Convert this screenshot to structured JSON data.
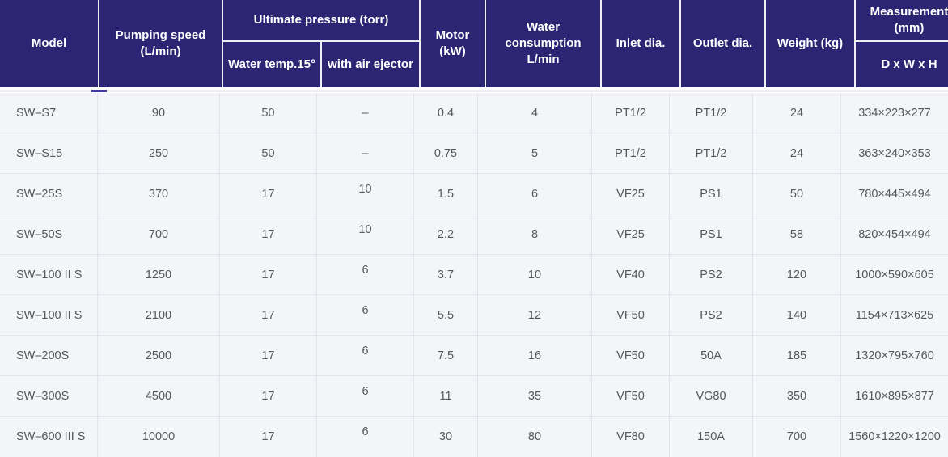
{
  "table": {
    "headers": {
      "model": "Model",
      "pumping_speed": "Pumping speed (L/min)",
      "ultimate_pressure": "Ultimate pressure (torr)",
      "water_temp": "Water temp.15°",
      "air_ejector": "with air ejector",
      "motor": "Motor (kW)",
      "water_consumption": "Water consumption L/min",
      "inlet": "Inlet dia.",
      "outlet": "Outlet dia.",
      "weight": "Weight (kg)",
      "measurement": "Measurement (mm)",
      "dimensions": "D x W x H"
    },
    "rows": [
      {
        "model": "SW–S7",
        "pumping_speed": "90",
        "water_temp": "50",
        "air_ejector": "–",
        "motor": "0.4",
        "water_consumption": "4",
        "inlet": "PT1/2",
        "outlet": "PT1/2",
        "weight": "24",
        "measurement": "334×223×277"
      },
      {
        "model": "SW–S15",
        "pumping_speed": "250",
        "water_temp": "50",
        "air_ejector": "–",
        "motor": "0.75",
        "water_consumption": "5",
        "inlet": "PT1/2",
        "outlet": "PT1/2",
        "weight": "24",
        "measurement": "363×240×353"
      },
      {
        "model": "SW–25S",
        "pumping_speed": "370",
        "water_temp": "17",
        "air_ejector": "10",
        "motor": "1.5",
        "water_consumption": "6",
        "inlet": "VF25",
        "outlet": "PS1",
        "weight": "50",
        "measurement": "780×445×494"
      },
      {
        "model": "SW–50S",
        "pumping_speed": "700",
        "water_temp": "17",
        "air_ejector": "10",
        "motor": "2.2",
        "water_consumption": "8",
        "inlet": "VF25",
        "outlet": "PS1",
        "weight": "58",
        "measurement": "820×454×494"
      },
      {
        "model": "SW–100 II S",
        "pumping_speed": "1250",
        "water_temp": "17",
        "air_ejector": "6",
        "motor": "3.7",
        "water_consumption": "10",
        "inlet": "VF40",
        "outlet": "PS2",
        "weight": "120",
        "measurement": "1000×590×605"
      },
      {
        "model": "SW–100 II S",
        "pumping_speed": "2100",
        "water_temp": "17",
        "air_ejector": "6",
        "motor": "5.5",
        "water_consumption": "12",
        "inlet": "VF50",
        "outlet": "PS2",
        "weight": "140",
        "measurement": "1154×713×625"
      },
      {
        "model": "SW–200S",
        "pumping_speed": "2500",
        "water_temp": "17",
        "air_ejector": "6",
        "motor": "7.5",
        "water_consumption": "16",
        "inlet": "VF50",
        "outlet": "50A",
        "weight": "185",
        "measurement": "1320×795×760"
      },
      {
        "model": "SW–300S",
        "pumping_speed": "4500",
        "water_temp": "17",
        "air_ejector": "6",
        "motor": "11",
        "water_consumption": "35",
        "inlet": "VF50",
        "outlet": "VG80",
        "weight": "350",
        "measurement": "1610×895×877"
      },
      {
        "model": "SW–600 III S",
        "pumping_speed": "10000",
        "water_temp": "17",
        "air_ejector": "6",
        "motor": "30",
        "water_consumption": "80",
        "inlet": "VF80",
        "outlet": "150A",
        "weight": "700",
        "measurement": "1560×1220×1200"
      }
    ]
  },
  "colors": {
    "header_bg": "#2c2574",
    "header_text": "#ffffff",
    "row_bg": "#f3f5f9",
    "row_border": "#e2e3eb",
    "body_text": "#56575b",
    "scroll_thumb": "#4038a5"
  }
}
